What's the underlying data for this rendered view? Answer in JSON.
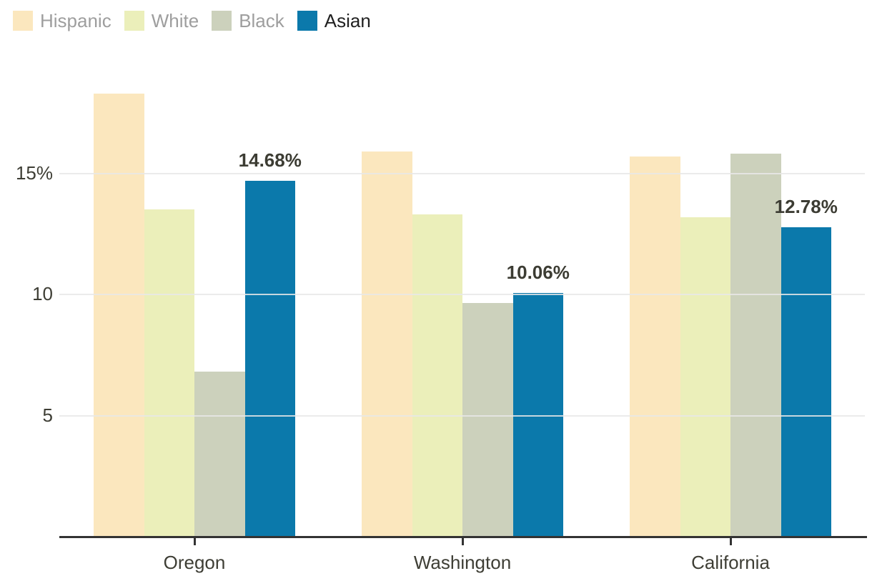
{
  "colors": {
    "background": "#FFFFFF",
    "legend_dimmed_text": "#9E9E9E",
    "legend_active_text": "#212121",
    "axis_line": "#333333",
    "tick_mark": "#333333",
    "tick_label": "#3E3E35",
    "data_label": "#3C3C33",
    "gridline": "#E8E8E8"
  },
  "chart_data": {
    "type": "bar",
    "title": "",
    "xlabel": "",
    "ylabel": "",
    "unit": "percent",
    "categories": [
      "Oregon",
      "Washington",
      "California"
    ],
    "series": [
      {
        "name": "Hispanic",
        "color": "#FBE7BE",
        "legend_dimmed": true,
        "values": [
          18.3,
          15.9,
          15.7
        ]
      },
      {
        "name": "White",
        "color": "#EBEFBA",
        "legend_dimmed": true,
        "values": [
          13.5,
          13.3,
          13.2
        ]
      },
      {
        "name": "Black",
        "color": "#CCD1BC",
        "legend_dimmed": true,
        "values": [
          6.8,
          9.65,
          15.8
        ]
      },
      {
        "name": "Asian",
        "color": "#0B79AB",
        "legend_dimmed": false,
        "values": [
          14.68,
          10.06,
          12.78
        ],
        "data_labels": [
          "14.68%",
          "10.06%",
          "12.78%"
        ]
      }
    ],
    "yticks": [
      {
        "value": 5,
        "label": "5"
      },
      {
        "value": 10,
        "label": "10"
      },
      {
        "value": 15,
        "label": "15%"
      }
    ],
    "ylim": [
      0,
      19.65
    ],
    "grid": true,
    "gridlines_drawn_above_bars": true,
    "legend_position": "top-left"
  }
}
